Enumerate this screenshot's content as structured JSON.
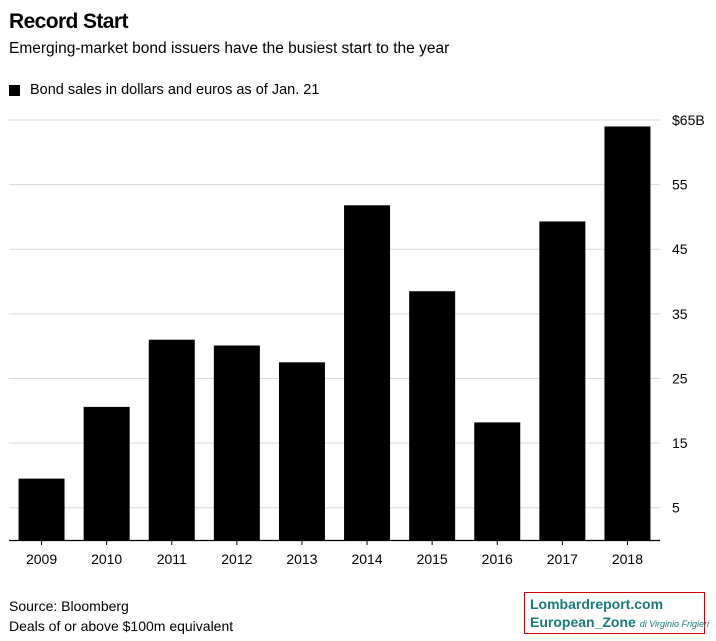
{
  "title": "Record Start",
  "subtitle": "Emerging-market bond issuers have the busiest start to the year",
  "legend_label": "Bond sales in dollars and euros as of Jan. 21",
  "source": "Source: Bloomberg",
  "note": "Deals of or above $100m equivalent",
  "watermark": {
    "line1": "Lombardreport.com",
    "line2": "European_Zone",
    "line2_small": "di Virginio Frigieri",
    "border_color": "#cc0000",
    "text_color": "#1a7a7a"
  },
  "chart_data": {
    "type": "bar",
    "categories": [
      "2009",
      "2010",
      "2011",
      "2012",
      "2013",
      "2014",
      "2015",
      "2016",
      "2017",
      "2018"
    ],
    "values": [
      9.5,
      20.6,
      31,
      30.1,
      27.5,
      51.8,
      38.5,
      18.2,
      49.3,
      64
    ],
    "ylim": [
      0,
      65
    ],
    "yticks": [
      5,
      15,
      25,
      35,
      45,
      55,
      65
    ],
    "ytick_labels": [
      "5",
      "15",
      "25",
      "35",
      "45",
      "55",
      "$65B"
    ],
    "bar_color": "#000000",
    "grid": true,
    "legend_position": "top-left"
  }
}
